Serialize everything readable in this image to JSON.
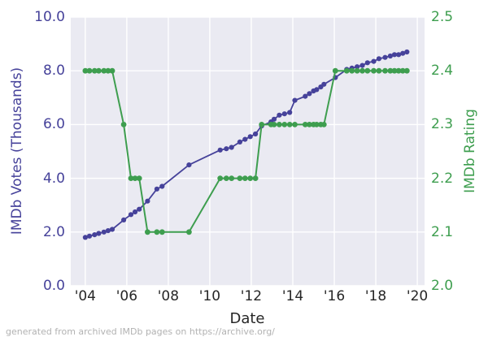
{
  "figure": {
    "background": "#ffffff",
    "plot_background": "#eaeaf2",
    "grid_color": "#ffffff",
    "footer": "generated from archived IMDb pages on https://archive.org/",
    "footer_color": "#b2b2b2",
    "x_tick_color": "#262626",
    "xlabel_color": "#262626"
  },
  "chart_data": {
    "type": "line",
    "title": "",
    "xlabel": "Date",
    "ylabel_left": "IMDb Votes (Thousands)",
    "ylabel_right": "IMDb Rating",
    "grid": true,
    "legend": "none",
    "xlim": [
      2003.3,
      2020.35
    ],
    "ylim_left": [
      0,
      10
    ],
    "ylim_right": [
      2.0,
      2.5
    ],
    "x_ticks": [
      {
        "value": 2004,
        "label": "'04"
      },
      {
        "value": 2006,
        "label": "'06"
      },
      {
        "value": 2008,
        "label": "'08"
      },
      {
        "value": 2010,
        "label": "'10"
      },
      {
        "value": 2012,
        "label": "'12"
      },
      {
        "value": 2014,
        "label": "'14"
      },
      {
        "value": 2016,
        "label": "'16"
      },
      {
        "value": 2018,
        "label": "'18"
      },
      {
        "value": 2020,
        "label": "'20"
      }
    ],
    "y_ticks_left": [
      {
        "value": 0,
        "label": "0.0"
      },
      {
        "value": 2,
        "label": "2.0"
      },
      {
        "value": 4,
        "label": "4.0"
      },
      {
        "value": 6,
        "label": "6.0"
      },
      {
        "value": 8,
        "label": "8.0"
      },
      {
        "value": 10,
        "label": "10.0"
      }
    ],
    "y_ticks_right": [
      {
        "value": 2.0,
        "label": "2.0"
      },
      {
        "value": 2.1,
        "label": "2.1"
      },
      {
        "value": 2.2,
        "label": "2.2"
      },
      {
        "value": 2.3,
        "label": "2.3"
      },
      {
        "value": 2.4,
        "label": "2.4"
      },
      {
        "value": 2.5,
        "label": "2.5"
      }
    ],
    "x": [
      2004.0,
      2004.2,
      2004.45,
      2004.65,
      2004.9,
      2005.1,
      2005.3,
      2005.85,
      2006.2,
      2006.4,
      2006.6,
      2007.0,
      2007.45,
      2007.7,
      2009.0,
      2010.5,
      2010.8,
      2011.05,
      2011.45,
      2011.7,
      2011.95,
      2012.2,
      2012.5,
      2012.95,
      2013.1,
      2013.35,
      2013.6,
      2013.85,
      2014.1,
      2014.6,
      2014.8,
      2015.0,
      2015.15,
      2015.35,
      2015.5,
      2016.05,
      2016.6,
      2016.85,
      2017.1,
      2017.35,
      2017.6,
      2017.9,
      2018.15,
      2018.45,
      2018.7,
      2018.9,
      2019.1,
      2019.3,
      2019.5
    ],
    "series": [
      {
        "name": "IMDb Votes (Thousands)",
        "axis": "left",
        "color": "#46429a",
        "marker_radius": 3.1,
        "line_width": 1.8,
        "values": [
          1.8,
          1.85,
          1.9,
          1.95,
          2.0,
          2.05,
          2.1,
          2.45,
          2.65,
          2.75,
          2.85,
          3.15,
          3.6,
          3.7,
          4.5,
          5.05,
          5.1,
          5.15,
          5.35,
          5.45,
          5.55,
          5.65,
          5.95,
          6.1,
          6.2,
          6.35,
          6.4,
          6.45,
          6.9,
          7.05,
          7.15,
          7.25,
          7.3,
          7.4,
          7.5,
          7.75,
          8.05,
          8.1,
          8.15,
          8.2,
          8.3,
          8.35,
          8.45,
          8.5,
          8.55,
          8.6,
          8.6,
          8.65,
          8.7
        ]
      },
      {
        "name": "IMDb Rating",
        "axis": "right",
        "color": "#3e9e4f",
        "marker_radius": 3.4,
        "line_width": 2.0,
        "values": [
          2.4,
          2.4,
          2.4,
          2.4,
          2.4,
          2.4,
          2.4,
          2.3,
          2.2,
          2.2,
          2.2,
          2.1,
          2.1,
          2.1,
          2.1,
          2.2,
          2.2,
          2.2,
          2.2,
          2.2,
          2.2,
          2.2,
          2.3,
          2.3,
          2.3,
          2.3,
          2.3,
          2.3,
          2.3,
          2.3,
          2.3,
          2.3,
          2.3,
          2.3,
          2.3,
          2.4,
          2.4,
          2.4,
          2.4,
          2.4,
          2.4,
          2.4,
          2.4,
          2.4,
          2.4,
          2.4,
          2.4,
          2.4,
          2.4
        ]
      }
    ]
  }
}
